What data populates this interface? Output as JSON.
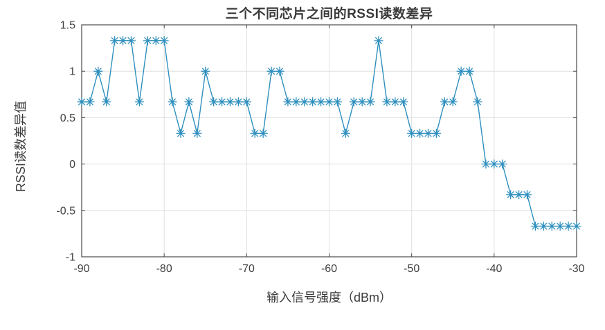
{
  "page": {
    "background": "#ffffff"
  },
  "chart_data": {
    "type": "line",
    "title": "三个不同芯片之间的RSSI读数差异",
    "xlabel": "输入信号强度（dBm）",
    "ylabel": "RSSI读数差异值",
    "xlim": [
      -90,
      -30
    ],
    "ylim": [
      -1,
      1.5
    ],
    "xticks": [
      -90,
      -80,
      -70,
      -60,
      -50,
      -40,
      -30
    ],
    "xtick_labels": [
      "-90",
      "-80",
      "-70",
      "-60",
      "-50",
      "-40",
      "-30"
    ],
    "yticks": [
      -1,
      -0.5,
      0,
      0.5,
      1,
      1.5
    ],
    "ytick_labels": [
      "-1",
      "-0.5",
      "0",
      "0.5",
      "1",
      "1.5"
    ],
    "grid": true,
    "legend": "none",
    "marker": "asterisk",
    "x": [
      -90,
      -89,
      -88,
      -87,
      -86,
      -85,
      -84,
      -83,
      -82,
      -81,
      -80,
      -79,
      -78,
      -77,
      -76,
      -75,
      -74,
      -73,
      -72,
      -71,
      -70,
      -69,
      -68,
      -67,
      -66,
      -65,
      -64,
      -63,
      -62,
      -61,
      -60,
      -59,
      -58,
      -57,
      -56,
      -55,
      -54,
      -53,
      -52,
      -51,
      -50,
      -49,
      -48,
      -47,
      -46,
      -45,
      -44,
      -43,
      -42,
      -41,
      -40,
      -39,
      -38,
      -37,
      -36,
      -35,
      -34,
      -33,
      -32,
      -31,
      -30
    ],
    "series": [
      {
        "name": "RSSI读数差异",
        "color": "#2e8fbe",
        "values": [
          0.67,
          0.67,
          1,
          0.67,
          1.33,
          1.33,
          1.33,
          0.67,
          1.33,
          1.33,
          1.33,
          0.67,
          0.33,
          0.67,
          0.33,
          1,
          0.67,
          0.67,
          0.67,
          0.67,
          0.67,
          0.33,
          0.33,
          1,
          1,
          0.67,
          0.67,
          0.67,
          0.67,
          0.67,
          0.67,
          0.67,
          0.33,
          0.67,
          0.67,
          0.67,
          1.33,
          0.67,
          0.67,
          0.67,
          0.33,
          0.33,
          0.33,
          0.33,
          0.67,
          0.67,
          1,
          1,
          0.67,
          0,
          0,
          0,
          -0.33,
          -0.33,
          -0.33,
          -0.67,
          -0.67,
          -0.67,
          -0.67,
          -0.67,
          -0.67
        ]
      }
    ],
    "colors": {
      "line": "#2e8fbe",
      "axis": "#4a4a4a",
      "grid": "#e0e0e0",
      "tick_label": "#3f3f3f",
      "title": "#3a3a3a"
    }
  }
}
